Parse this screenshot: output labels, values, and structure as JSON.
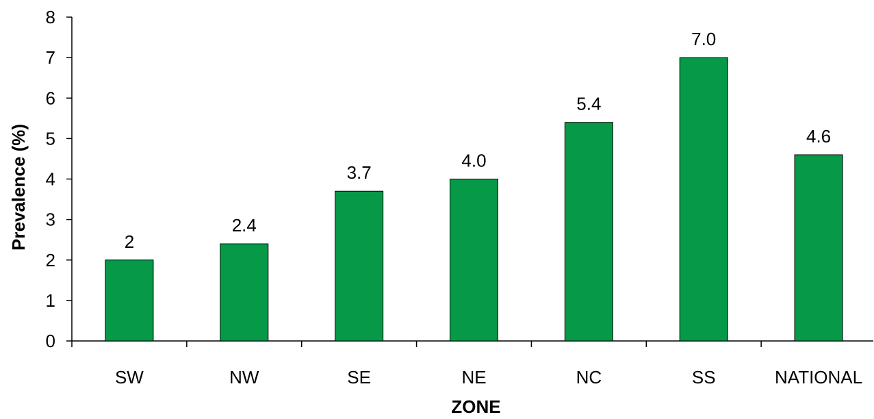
{
  "chart_data": {
    "type": "bar",
    "title": "",
    "xlabel": "ZONE",
    "ylabel": "Prevalence (%)",
    "categories": [
      "SW",
      "NW",
      "SE",
      "NE",
      "NC",
      "SS",
      "NATIONAL"
    ],
    "values": [
      2,
      2.4,
      3.7,
      4.0,
      5.4,
      7.0,
      4.6
    ],
    "data_labels": [
      "2",
      "2.4",
      "3.7",
      "4.0",
      "5.4",
      "7.0",
      "4.6"
    ],
    "ylim": [
      0,
      8
    ],
    "yticks": [
      "0",
      "1",
      "2",
      "3",
      "4",
      "5",
      "6",
      "7",
      "8"
    ],
    "grid": false,
    "legend": "none",
    "colors": {
      "bar": "#069a48"
    }
  }
}
